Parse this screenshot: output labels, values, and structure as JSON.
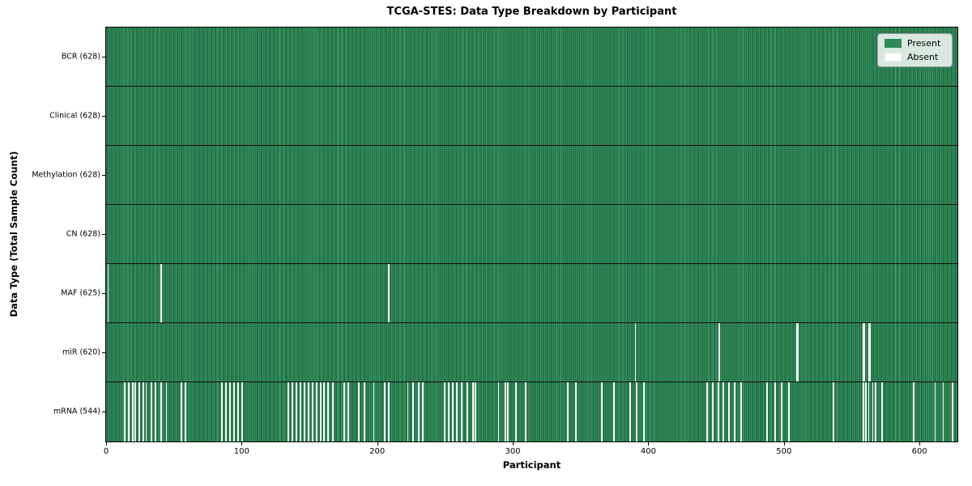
{
  "chart_data": {
    "type": "heatmap",
    "title": "TCGA-STES: Data Type Breakdown by Participant",
    "xlabel": "Participant",
    "ylabel": "Data Type (Total Sample Count)",
    "x_ticks": [
      0,
      100,
      200,
      300,
      400,
      500,
      600
    ],
    "x_range": [
      0,
      628
    ],
    "n_participants": 628,
    "grid": false,
    "legend_position": "upper right",
    "legend": [
      {
        "label": "Present",
        "color": "#2e8b57"
      },
      {
        "label": "Absent",
        "color": "#ffffff"
      }
    ],
    "colors": {
      "present": "#2e8b57",
      "absent": "#ffffff",
      "cell_edge": "#123b26",
      "row_separator": "#0d0d0d",
      "legend_background": "#e3e7e3"
    },
    "rows": [
      {
        "label": "BCR (628)",
        "data_type": "BCR",
        "total_samples": 628,
        "absent_participants": []
      },
      {
        "label": "Clinical (628)",
        "data_type": "Clinical",
        "total_samples": 628,
        "absent_participants": []
      },
      {
        "label": "Methylation (628)",
        "data_type": "Methylation",
        "total_samples": 628,
        "absent_participants": []
      },
      {
        "label": "CN (628)",
        "data_type": "CN",
        "total_samples": 628,
        "absent_participants": []
      },
      {
        "label": "MAF (625)",
        "data_type": "MAF",
        "total_samples": 625,
        "absent_participants": [
          1,
          40,
          208
        ]
      },
      {
        "label": "miR (620)",
        "data_type": "miR",
        "total_samples": 620,
        "absent_participants": [
          390,
          452,
          509,
          510,
          558,
          559,
          562,
          563
        ]
      },
      {
        "label": "mRNA (544)",
        "data_type": "mRNA",
        "total_samples": 544,
        "absent_participants": [
          13,
          16,
          19,
          21,
          24,
          27,
          29,
          33,
          36,
          40,
          44,
          55,
          58,
          85,
          88,
          91,
          94,
          97,
          100,
          134,
          137,
          140,
          143,
          146,
          149,
          152,
          155,
          158,
          160,
          163,
          167,
          175,
          178,
          186,
          190,
          197,
          205,
          208,
          222,
          226,
          230,
          233,
          249,
          252,
          255,
          258,
          262,
          266,
          270,
          272,
          289,
          294,
          296,
          302,
          309,
          340,
          346,
          365,
          374,
          386,
          391,
          396,
          443,
          447,
          451,
          455,
          459,
          463,
          468,
          487,
          493,
          498,
          503,
          536,
          558,
          560,
          562,
          565,
          567,
          572,
          595,
          611,
          617,
          624
        ]
      }
    ]
  }
}
